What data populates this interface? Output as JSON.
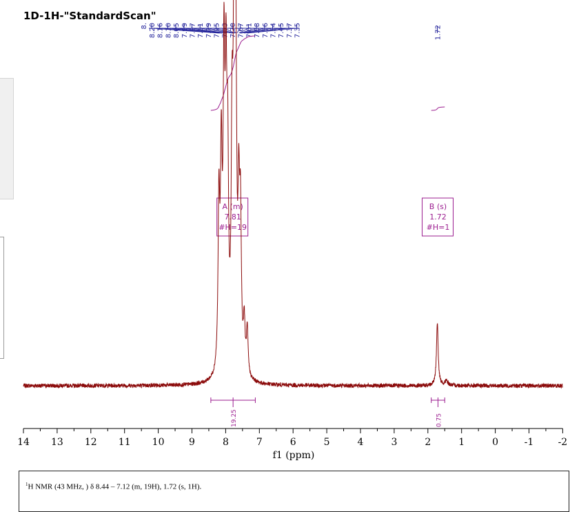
{
  "chart_data": {
    "type": "line",
    "title": "1D-1H-\"StandardScan\"",
    "xlabel": "f1 (ppm)",
    "xlim": [
      14,
      -2
    ],
    "x_ticks": [
      "14",
      "13",
      "12",
      "11",
      "10",
      "9",
      "8",
      "7",
      "6",
      "5",
      "4",
      "3",
      "2",
      "1",
      "0",
      "-1",
      "-2"
    ],
    "peak_labels_left": [
      "8.20",
      "8.16",
      "8.10",
      "8.05",
      "7.99",
      "7.97",
      "7.81",
      "7.79",
      "7.75",
      "7.73",
      "7.70",
      "7.67",
      "7.61",
      "7.58",
      "7.56",
      "7.54",
      "7.45",
      "7.37",
      "7.35"
    ],
    "peak_label_overlap": "8.",
    "peak_labels_right": [
      "1.72"
    ],
    "spectrum_peaks": [
      {
        "ppm": 8.2,
        "height": 0.46
      },
      {
        "ppm": 8.13,
        "height": 0.56
      },
      {
        "ppm": 8.05,
        "height": 0.8
      },
      {
        "ppm": 7.99,
        "height": 0.68
      },
      {
        "ppm": 7.94,
        "height": 0.52
      },
      {
        "ppm": 7.81,
        "height": 0.6
      },
      {
        "ppm": 7.75,
        "height": 1.0
      },
      {
        "ppm": 7.7,
        "height": 0.82
      },
      {
        "ppm": 7.61,
        "height": 0.42
      },
      {
        "ppm": 7.56,
        "height": 0.4
      },
      {
        "ppm": 7.45,
        "height": 0.14
      },
      {
        "ppm": 7.36,
        "height": 0.13
      },
      {
        "ppm": 1.72,
        "height": 0.18
      },
      {
        "ppm": 1.45,
        "height": 0.012
      }
    ],
    "multiplets": [
      {
        "label": "A (m)",
        "shift": "7.81",
        "nh": "#H=19",
        "ppm": 7.81
      },
      {
        "label": "B (s)",
        "shift": "1.72",
        "nh": "#H=1",
        "ppm": 1.72
      }
    ],
    "integrals": [
      {
        "from": 8.44,
        "to": 7.12,
        "value": "19.25"
      },
      {
        "from": 1.9,
        "to": 1.5,
        "value": "0.75"
      }
    ],
    "colors": {
      "spectrum": "#8b0a0a",
      "integral": "#9b1c8f",
      "peak_labels": "#22229a",
      "axis": "#000000"
    }
  },
  "footer": {
    "nucleus": "1",
    "text": "H NMR (43 MHz, ) δ 8.44 – 7.12 (m, 19H), 1.72 (s, 1H)."
  }
}
